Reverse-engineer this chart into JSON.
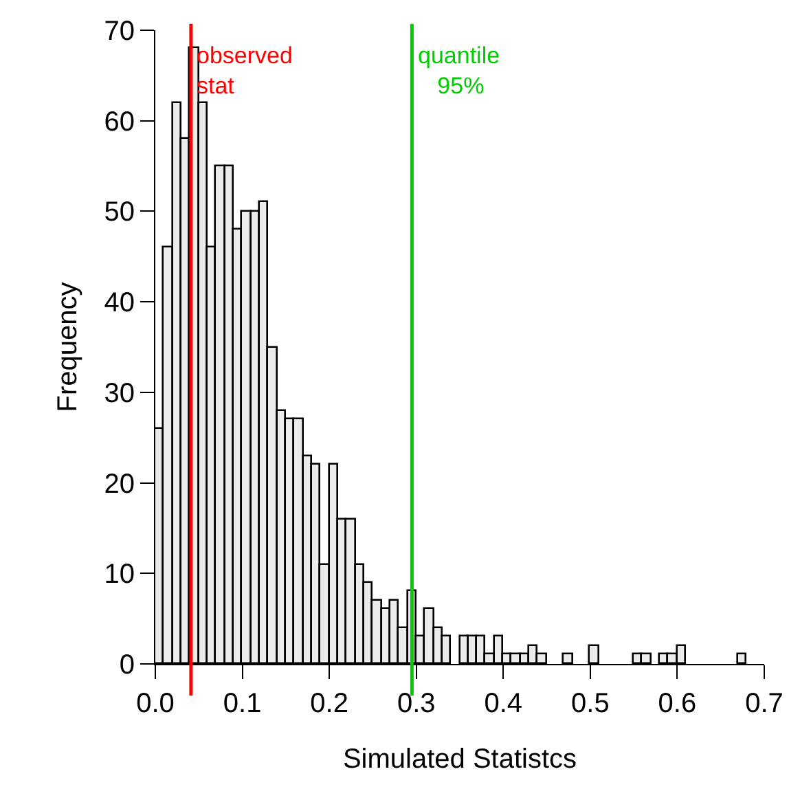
{
  "chart_data": {
    "type": "histogram",
    "xlabel": "Simulated Statistcs",
    "ylabel": "Frequency",
    "bins": [
      0,
      0.01,
      0.02,
      0.03,
      0.04,
      0.05,
      0.06,
      0.07,
      0.08,
      0.09,
      0.1,
      0.11,
      0.12,
      0.13,
      0.14,
      0.15,
      0.16,
      0.17,
      0.18,
      0.19,
      0.2,
      0.21,
      0.22,
      0.23,
      0.24,
      0.25,
      0.26,
      0.27,
      0.28,
      0.29,
      0.3,
      0.31,
      0.32,
      0.33,
      0.34,
      0.35,
      0.36,
      0.37,
      0.38,
      0.39,
      0.4,
      0.41,
      0.42,
      0.43,
      0.44,
      0.45,
      0.46,
      0.47,
      0.48,
      0.49,
      0.5,
      0.51,
      0.52,
      0.53,
      0.54,
      0.55,
      0.56,
      0.57,
      0.58,
      0.59,
      0.6,
      0.61,
      0.62,
      0.63,
      0.64,
      0.65,
      0.66,
      0.67,
      0.68
    ],
    "values": [
      26,
      46,
      62,
      58,
      68,
      62,
      46,
      55,
      55,
      48,
      50,
      50,
      51,
      35,
      28,
      27,
      27,
      23,
      22,
      11,
      22,
      16,
      16,
      11,
      9,
      7,
      6,
      7,
      4,
      8,
      3,
      6,
      4,
      3,
      0,
      3,
      3,
      3,
      1,
      3,
      1,
      1,
      1,
      2,
      1,
      0,
      0,
      1,
      0,
      0,
      2,
      0,
      0,
      0,
      0,
      1,
      1,
      0,
      1,
      1,
      2,
      0,
      0,
      0,
      0,
      0,
      0,
      1
    ],
    "color": "#ebebeb",
    "xlim": [
      0,
      0.7
    ],
    "xticks": [
      {
        "value": 0,
        "label": "0.0"
      },
      0.1,
      0.2,
      0.3,
      0.4,
      0.5,
      0.6,
      0.7
    ],
    "ylim": [
      0,
      70
    ],
    "yticks": [
      0,
      10,
      20,
      30,
      40,
      50,
      60,
      70
    ],
    "ref_lines": [
      {
        "axis": "x",
        "value": 0.041,
        "label": "observed\nstat",
        "color": "#ff0000"
      },
      {
        "axis": "x",
        "value": 0.295,
        "label": "quantile\n   95%",
        "color": "#00cc00"
      }
    ]
  }
}
